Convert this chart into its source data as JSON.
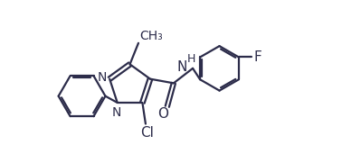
{
  "bg_color": "#ffffff",
  "line_color": "#2c2c4a",
  "line_width": 1.6,
  "font_size": 10,
  "figsize": [
    3.99,
    1.71
  ],
  "dpi": 100,
  "xlim": [
    -1.1,
    1.55
  ],
  "ylim": [
    -0.72,
    0.72
  ]
}
